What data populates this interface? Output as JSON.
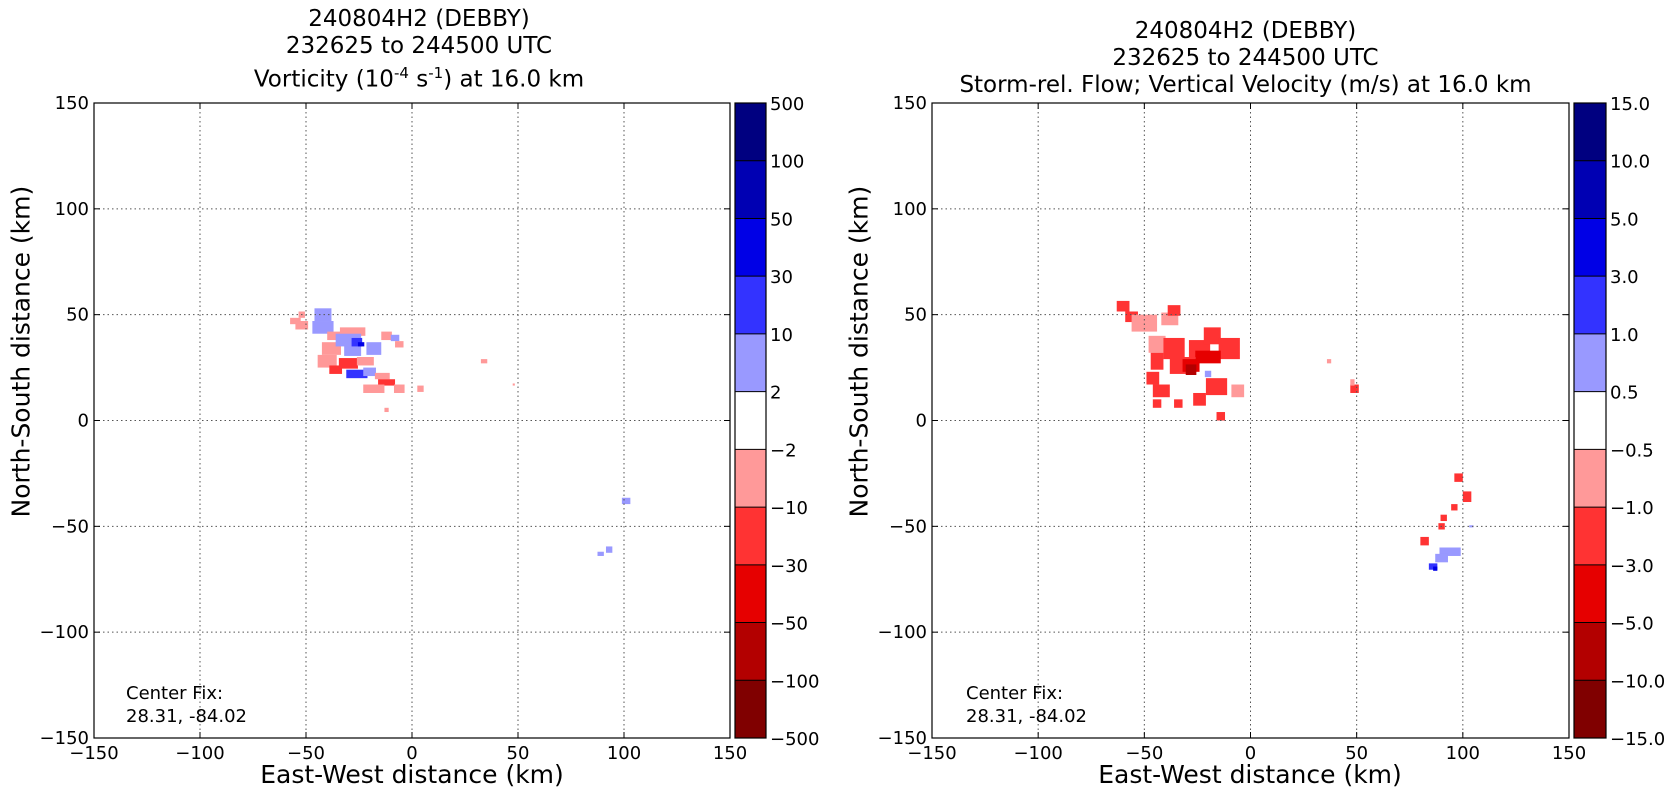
{
  "panels": [
    {
      "title_line1": "240804H2 (DEBBY)",
      "title_line2": "232625 to 244500 UTC",
      "title_line3_pre": "Vorticity (10",
      "title_line3_sup1": "-4",
      "title_line3_mid": " s",
      "title_line3_sup2": "-1",
      "title_line3_post": ") at 16.0 km",
      "center_fix_label": "Center Fix:",
      "center_fix_value": "28.31, -84.02"
    },
    {
      "title_line1": "240804H2 (DEBBY)",
      "title_line2": "232625 to 244500 UTC",
      "title_line3": "Storm-rel. Flow; Vertical Velocity (m/s) at 16.0 km",
      "center_fix_label": "Center Fix:",
      "center_fix_value": "28.31, -84.02"
    }
  ],
  "chart_data": [
    {
      "type": "heatmap",
      "field": "Vorticity",
      "xlabel": "East-West distance (km)",
      "ylabel": "North-South distance (km)",
      "xlim": [
        -150,
        150
      ],
      "ylim": [
        -150,
        150
      ],
      "x_ticks": [
        -150,
        -100,
        -50,
        0,
        50,
        100,
        150
      ],
      "y_ticks": [
        -150,
        -100,
        -50,
        0,
        50,
        100,
        150
      ],
      "x_tick_labels": [
        "−150",
        "−100",
        "−50",
        "0",
        "50",
        "100",
        "150"
      ],
      "y_tick_labels": [
        "−150",
        "−100",
        "−50",
        "0",
        "50",
        "100",
        "150"
      ],
      "grid": true,
      "colorbar": {
        "levels": [
          "500",
          "100",
          "50",
          "30",
          "10",
          "2",
          "−2",
          "−10",
          "−30",
          "−50",
          "−100",
          "−500"
        ],
        "colors": [
          "#800000",
          "#b30000",
          "#e60000",
          "#ff3333",
          "#ff9999",
          "#ffffff",
          "#9999ff",
          "#3333ff",
          "#0000e6",
          "#0000b3",
          "#000080"
        ]
      },
      "features": [
        {
          "x": -52,
          "y": 50,
          "w": 3,
          "h": 3,
          "level": 4
        },
        {
          "x": -52,
          "y": 45,
          "w": 6,
          "h": 4,
          "level": 4
        },
        {
          "x": -55,
          "y": 47,
          "w": 5,
          "h": 3,
          "level": 4
        },
        {
          "x": -42,
          "y": 50,
          "w": 8,
          "h": 6,
          "level": 6
        },
        {
          "x": -42,
          "y": 44,
          "w": 10,
          "h": 6,
          "level": 6
        },
        {
          "x": -35,
          "y": 40,
          "w": 10,
          "h": 4,
          "level": 4
        },
        {
          "x": -28,
          "y": 42,
          "w": 12,
          "h": 4,
          "level": 4
        },
        {
          "x": -38,
          "y": 34,
          "w": 9,
          "h": 6,
          "level": 4
        },
        {
          "x": -40,
          "y": 28,
          "w": 9,
          "h": 6,
          "level": 4
        },
        {
          "x": -36,
          "y": 24,
          "w": 6,
          "h": 4,
          "level": 3
        },
        {
          "x": -30,
          "y": 38,
          "w": 12,
          "h": 6,
          "level": 6
        },
        {
          "x": -28,
          "y": 33,
          "w": 8,
          "h": 5,
          "level": 6
        },
        {
          "x": -26,
          "y": 37,
          "w": 5,
          "h": 4,
          "level": 7
        },
        {
          "x": -24,
          "y": 36,
          "w": 3,
          "h": 2,
          "level": 8
        },
        {
          "x": -18,
          "y": 34,
          "w": 7,
          "h": 6,
          "level": 6
        },
        {
          "x": -30,
          "y": 27,
          "w": 9,
          "h": 5,
          "level": 3
        },
        {
          "x": -22,
          "y": 28,
          "w": 8,
          "h": 4,
          "level": 4
        },
        {
          "x": -26,
          "y": 22,
          "w": 10,
          "h": 4,
          "level": 7
        },
        {
          "x": -20,
          "y": 23,
          "w": 6,
          "h": 4,
          "level": 6
        },
        {
          "x": -12,
          "y": 40,
          "w": 5,
          "h": 4,
          "level": 4
        },
        {
          "x": -8,
          "y": 39,
          "w": 4,
          "h": 3,
          "level": 6
        },
        {
          "x": -6,
          "y": 36,
          "w": 4,
          "h": 3,
          "level": 4
        },
        {
          "x": -14,
          "y": 21,
          "w": 7,
          "h": 3,
          "level": 4
        },
        {
          "x": -12,
          "y": 18,
          "w": 8,
          "h": 3,
          "level": 3
        },
        {
          "x": -18,
          "y": 15,
          "w": 10,
          "h": 4,
          "level": 4
        },
        {
          "x": -6,
          "y": 15,
          "w": 5,
          "h": 4,
          "level": 4
        },
        {
          "x": 4,
          "y": 15,
          "w": 3,
          "h": 3,
          "level": 4
        },
        {
          "x": -12,
          "y": 5,
          "w": 2,
          "h": 2,
          "level": 4
        },
        {
          "x": 34,
          "y": 28,
          "w": 3,
          "h": 2,
          "level": 4
        },
        {
          "x": 48,
          "y": 17,
          "w": 1,
          "h": 1,
          "level": 4
        },
        {
          "x": 101,
          "y": -38,
          "w": 4,
          "h": 3,
          "level": 6
        },
        {
          "x": 93,
          "y": -61,
          "w": 3,
          "h": 3,
          "level": 6
        },
        {
          "x": 89,
          "y": -63,
          "w": 3,
          "h": 2,
          "level": 6
        }
      ]
    },
    {
      "type": "heatmap",
      "field": "Vertical Velocity",
      "xlabel": "East-West distance (km)",
      "ylabel": "North-South distance (km)",
      "xlim": [
        -150,
        150
      ],
      "ylim": [
        -150,
        150
      ],
      "x_ticks": [
        -150,
        -100,
        -50,
        0,
        50,
        100,
        150
      ],
      "y_ticks": [
        -150,
        -100,
        -50,
        0,
        50,
        100,
        150
      ],
      "x_tick_labels": [
        "−150",
        "−100",
        "−50",
        "0",
        "50",
        "100",
        "150"
      ],
      "y_tick_labels": [
        "−150",
        "−100",
        "−50",
        "0",
        "50",
        "100",
        "150"
      ],
      "grid": true,
      "colorbar": {
        "levels": [
          "15.0",
          "10.0",
          "5.0",
          "3.0",
          "1.0",
          "0.5",
          "−0.5",
          "−1.0",
          "−3.0",
          "−5.0",
          "−10.0",
          "−15.0"
        ],
        "colors": [
          "#800000",
          "#b30000",
          "#e60000",
          "#ff3333",
          "#ff9999",
          "#ffffff",
          "#9999ff",
          "#3333ff",
          "#0000e6",
          "#0000b3",
          "#000080"
        ]
      },
      "features": [
        {
          "x": -60,
          "y": 54,
          "w": 6,
          "h": 5,
          "level": 3
        },
        {
          "x": -56,
          "y": 49,
          "w": 6,
          "h": 5,
          "level": 3
        },
        {
          "x": -50,
          "y": 46,
          "w": 12,
          "h": 8,
          "level": 4
        },
        {
          "x": -38,
          "y": 48,
          "w": 8,
          "h": 6,
          "level": 4
        },
        {
          "x": -36,
          "y": 52,
          "w": 6,
          "h": 5,
          "level": 3
        },
        {
          "x": -44,
          "y": 36,
          "w": 8,
          "h": 8,
          "level": 4
        },
        {
          "x": -44,
          "y": 28,
          "w": 6,
          "h": 8,
          "level": 3
        },
        {
          "x": -46,
          "y": 20,
          "w": 6,
          "h": 6,
          "level": 3
        },
        {
          "x": -42,
          "y": 14,
          "w": 8,
          "h": 6,
          "level": 3
        },
        {
          "x": -44,
          "y": 8,
          "w": 4,
          "h": 4,
          "level": 3
        },
        {
          "x": -36,
          "y": 34,
          "w": 10,
          "h": 10,
          "level": 3
        },
        {
          "x": -32,
          "y": 26,
          "w": 12,
          "h": 8,
          "level": 3
        },
        {
          "x": -24,
          "y": 34,
          "w": 10,
          "h": 8,
          "level": 3
        },
        {
          "x": -18,
          "y": 40,
          "w": 8,
          "h": 8,
          "level": 3
        },
        {
          "x": -10,
          "y": 34,
          "w": 10,
          "h": 10,
          "level": 3
        },
        {
          "x": -20,
          "y": 30,
          "w": 12,
          "h": 6,
          "level": 2
        },
        {
          "x": -28,
          "y": 26,
          "w": 8,
          "h": 6,
          "level": 2
        },
        {
          "x": -28,
          "y": 24,
          "w": 5,
          "h": 5,
          "level": 1
        },
        {
          "x": -20,
          "y": 22,
          "w": 3,
          "h": 3,
          "level": 6
        },
        {
          "x": -16,
          "y": 16,
          "w": 10,
          "h": 8,
          "level": 3
        },
        {
          "x": -6,
          "y": 14,
          "w": 6,
          "h": 6,
          "level": 4
        },
        {
          "x": -24,
          "y": 10,
          "w": 6,
          "h": 6,
          "level": 3
        },
        {
          "x": -14,
          "y": 2,
          "w": 4,
          "h": 4,
          "level": 3
        },
        {
          "x": -34,
          "y": 8,
          "w": 4,
          "h": 4,
          "level": 3
        },
        {
          "x": 37,
          "y": 28,
          "w": 2,
          "h": 2,
          "level": 4
        },
        {
          "x": 49,
          "y": 15,
          "w": 4,
          "h": 4,
          "level": 3
        },
        {
          "x": 48,
          "y": 18,
          "w": 2,
          "h": 3,
          "level": 4
        },
        {
          "x": 98,
          "y": -27,
          "w": 4,
          "h": 4,
          "level": 3
        },
        {
          "x": 102,
          "y": -36,
          "w": 4,
          "h": 5,
          "level": 3
        },
        {
          "x": 96,
          "y": -41,
          "w": 3,
          "h": 3,
          "level": 3
        },
        {
          "x": 91,
          "y": -46,
          "w": 3,
          "h": 3,
          "level": 3
        },
        {
          "x": 82,
          "y": -57,
          "w": 4,
          "h": 4,
          "level": 3
        },
        {
          "x": 90,
          "y": -50,
          "w": 3,
          "h": 3,
          "level": 3
        },
        {
          "x": 94,
          "y": -62,
          "w": 10,
          "h": 4,
          "level": 6
        },
        {
          "x": 90,
          "y": -65,
          "w": 6,
          "h": 4,
          "level": 6
        },
        {
          "x": 86,
          "y": -69,
          "w": 4,
          "h": 3,
          "level": 7
        },
        {
          "x": 87,
          "y": -70,
          "w": 2,
          "h": 2,
          "level": 8
        },
        {
          "x": 104,
          "y": -50,
          "w": 2,
          "h": 1,
          "level": 6
        }
      ]
    }
  ]
}
